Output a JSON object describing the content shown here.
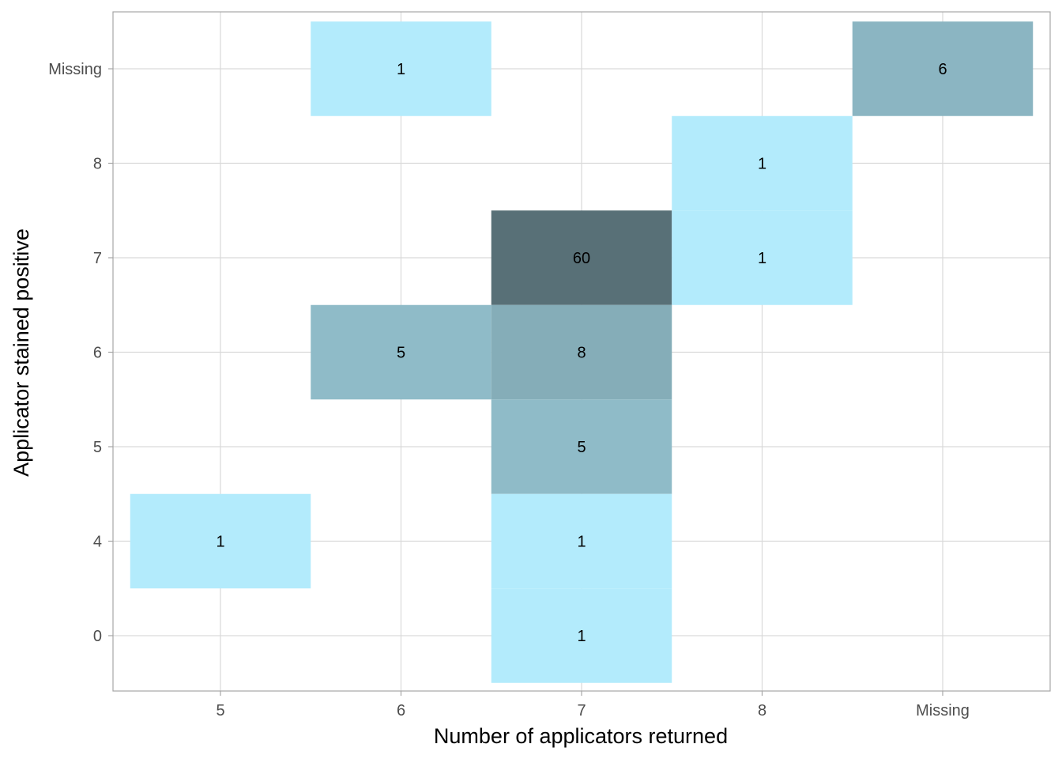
{
  "chart_data": {
    "type": "heatmap",
    "xlabel": "Number of applicators returned",
    "ylabel": "Applicator stained positive",
    "x_categories": [
      "5",
      "6",
      "7",
      "8",
      "Missing"
    ],
    "y_categories": [
      "0",
      "4",
      "5",
      "6",
      "7",
      "8",
      "Missing"
    ],
    "grid": true,
    "legend": "none",
    "colors": {
      "low": "#b3ebfc",
      "high": "#587077",
      "grid": "#d9d9d9",
      "border": "#a6a6a6"
    },
    "cells": [
      {
        "x": "6",
        "y": "Missing",
        "count": 1
      },
      {
        "x": "Missing",
        "y": "Missing",
        "count": 6
      },
      {
        "x": "8",
        "y": "8",
        "count": 1
      },
      {
        "x": "7",
        "y": "7",
        "count": 60
      },
      {
        "x": "8",
        "y": "7",
        "count": 1
      },
      {
        "x": "6",
        "y": "6",
        "count": 5
      },
      {
        "x": "7",
        "y": "6",
        "count": 8
      },
      {
        "x": "7",
        "y": "5",
        "count": 5
      },
      {
        "x": "5",
        "y": "4",
        "count": 1
      },
      {
        "x": "7",
        "y": "4",
        "count": 1
      },
      {
        "x": "7",
        "y": "0",
        "count": 1
      }
    ]
  }
}
